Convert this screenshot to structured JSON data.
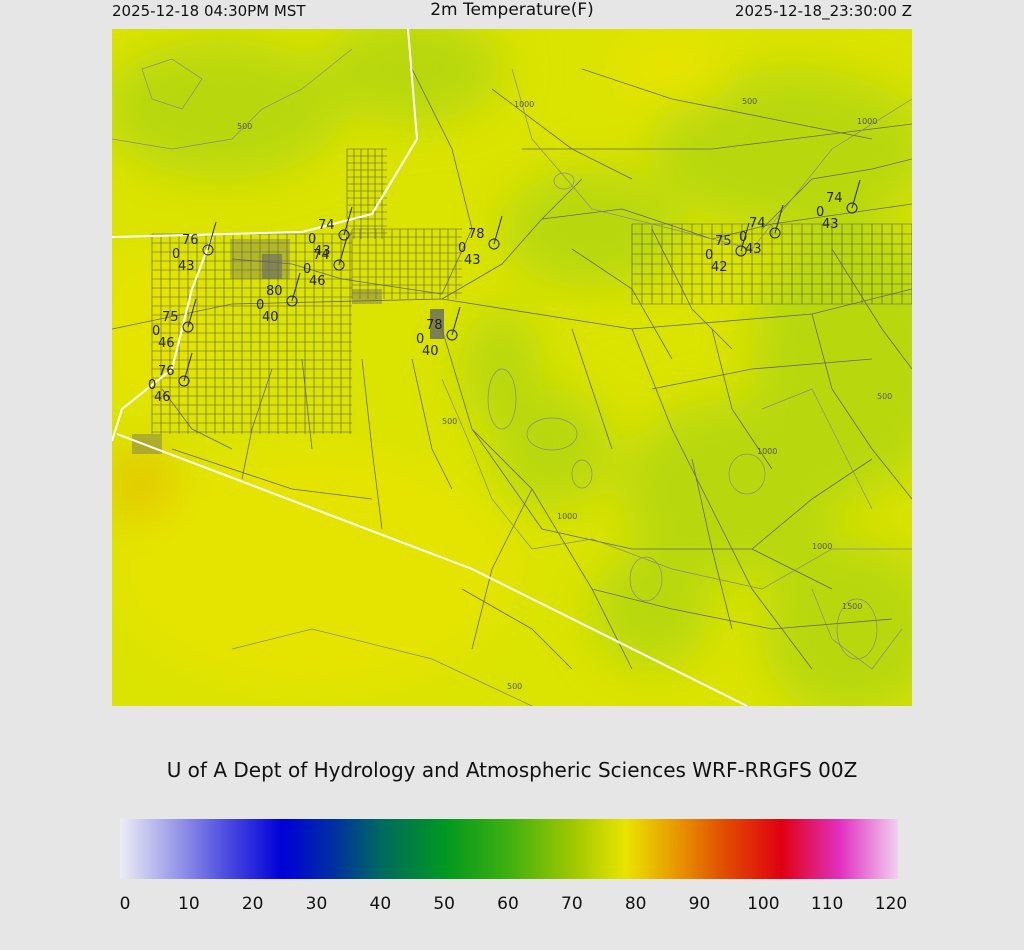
{
  "header": {
    "local_time": "2025-12-18 04:30PM MST",
    "title": "2m Temperature(F)",
    "utc_time": "2025-12-18_23:30:00 Z"
  },
  "footer": {
    "credit": "U of A Dept of Hydrology and Atmospheric Sciences WRF-RRGFS 00Z"
  },
  "colorbar": {
    "ticks": [
      "0",
      "10",
      "20",
      "30",
      "40",
      "50",
      "60",
      "70",
      "80",
      "90",
      "100",
      "110",
      "120"
    ],
    "stops": [
      {
        "v": 0,
        "c": "#ececf4"
      },
      {
        "v": 8,
        "c": "#a0a0e8"
      },
      {
        "v": 16,
        "c": "#5050e0"
      },
      {
        "v": 25,
        "c": "#0000d8"
      },
      {
        "v": 33,
        "c": "#0030a0"
      },
      {
        "v": 40,
        "c": "#006860"
      },
      {
        "v": 50,
        "c": "#009820"
      },
      {
        "v": 60,
        "c": "#40b010"
      },
      {
        "v": 70,
        "c": "#a0c800"
      },
      {
        "v": 78,
        "c": "#e8e400"
      },
      {
        "v": 85,
        "c": "#e8a000"
      },
      {
        "v": 93,
        "c": "#e05000"
      },
      {
        "v": 102,
        "c": "#e00010"
      },
      {
        "v": 111,
        "c": "#e030c0"
      },
      {
        "v": 120,
        "c": "#f0d0f0"
      }
    ]
  },
  "map": {
    "field_colors": {
      "base": "#dbe300",
      "cool": "#b8d810",
      "warm": "#e5e400",
      "hot": "#e4c800"
    },
    "contours": [
      "500",
      "1000",
      "500",
      "500",
      "1000",
      "1000",
      "1000",
      "500",
      "1000",
      "1500",
      "500"
    ],
    "stations": [
      {
        "temp": "76",
        "wind": "0",
        "dew": "43"
      },
      {
        "temp": "74",
        "wind": "0",
        "dew": "43"
      },
      {
        "temp": "74",
        "wind": "0",
        "dew": "46"
      },
      {
        "temp": "78",
        "wind": "0",
        "dew": "43"
      },
      {
        "temp": "80",
        "wind": "0",
        "dew": "40"
      },
      {
        "temp": "75",
        "wind": "0",
        "dew": "46"
      },
      {
        "temp": "78",
        "wind": "0",
        "dew": "40"
      },
      {
        "temp": "76",
        "wind": "0",
        "dew": "46"
      },
      {
        "temp": "75",
        "wind": "0",
        "dew": "42"
      },
      {
        "temp": "74",
        "wind": "0",
        "dew": "43"
      },
      {
        "temp": "74",
        "wind": "0",
        "dew": "43"
      }
    ]
  }
}
